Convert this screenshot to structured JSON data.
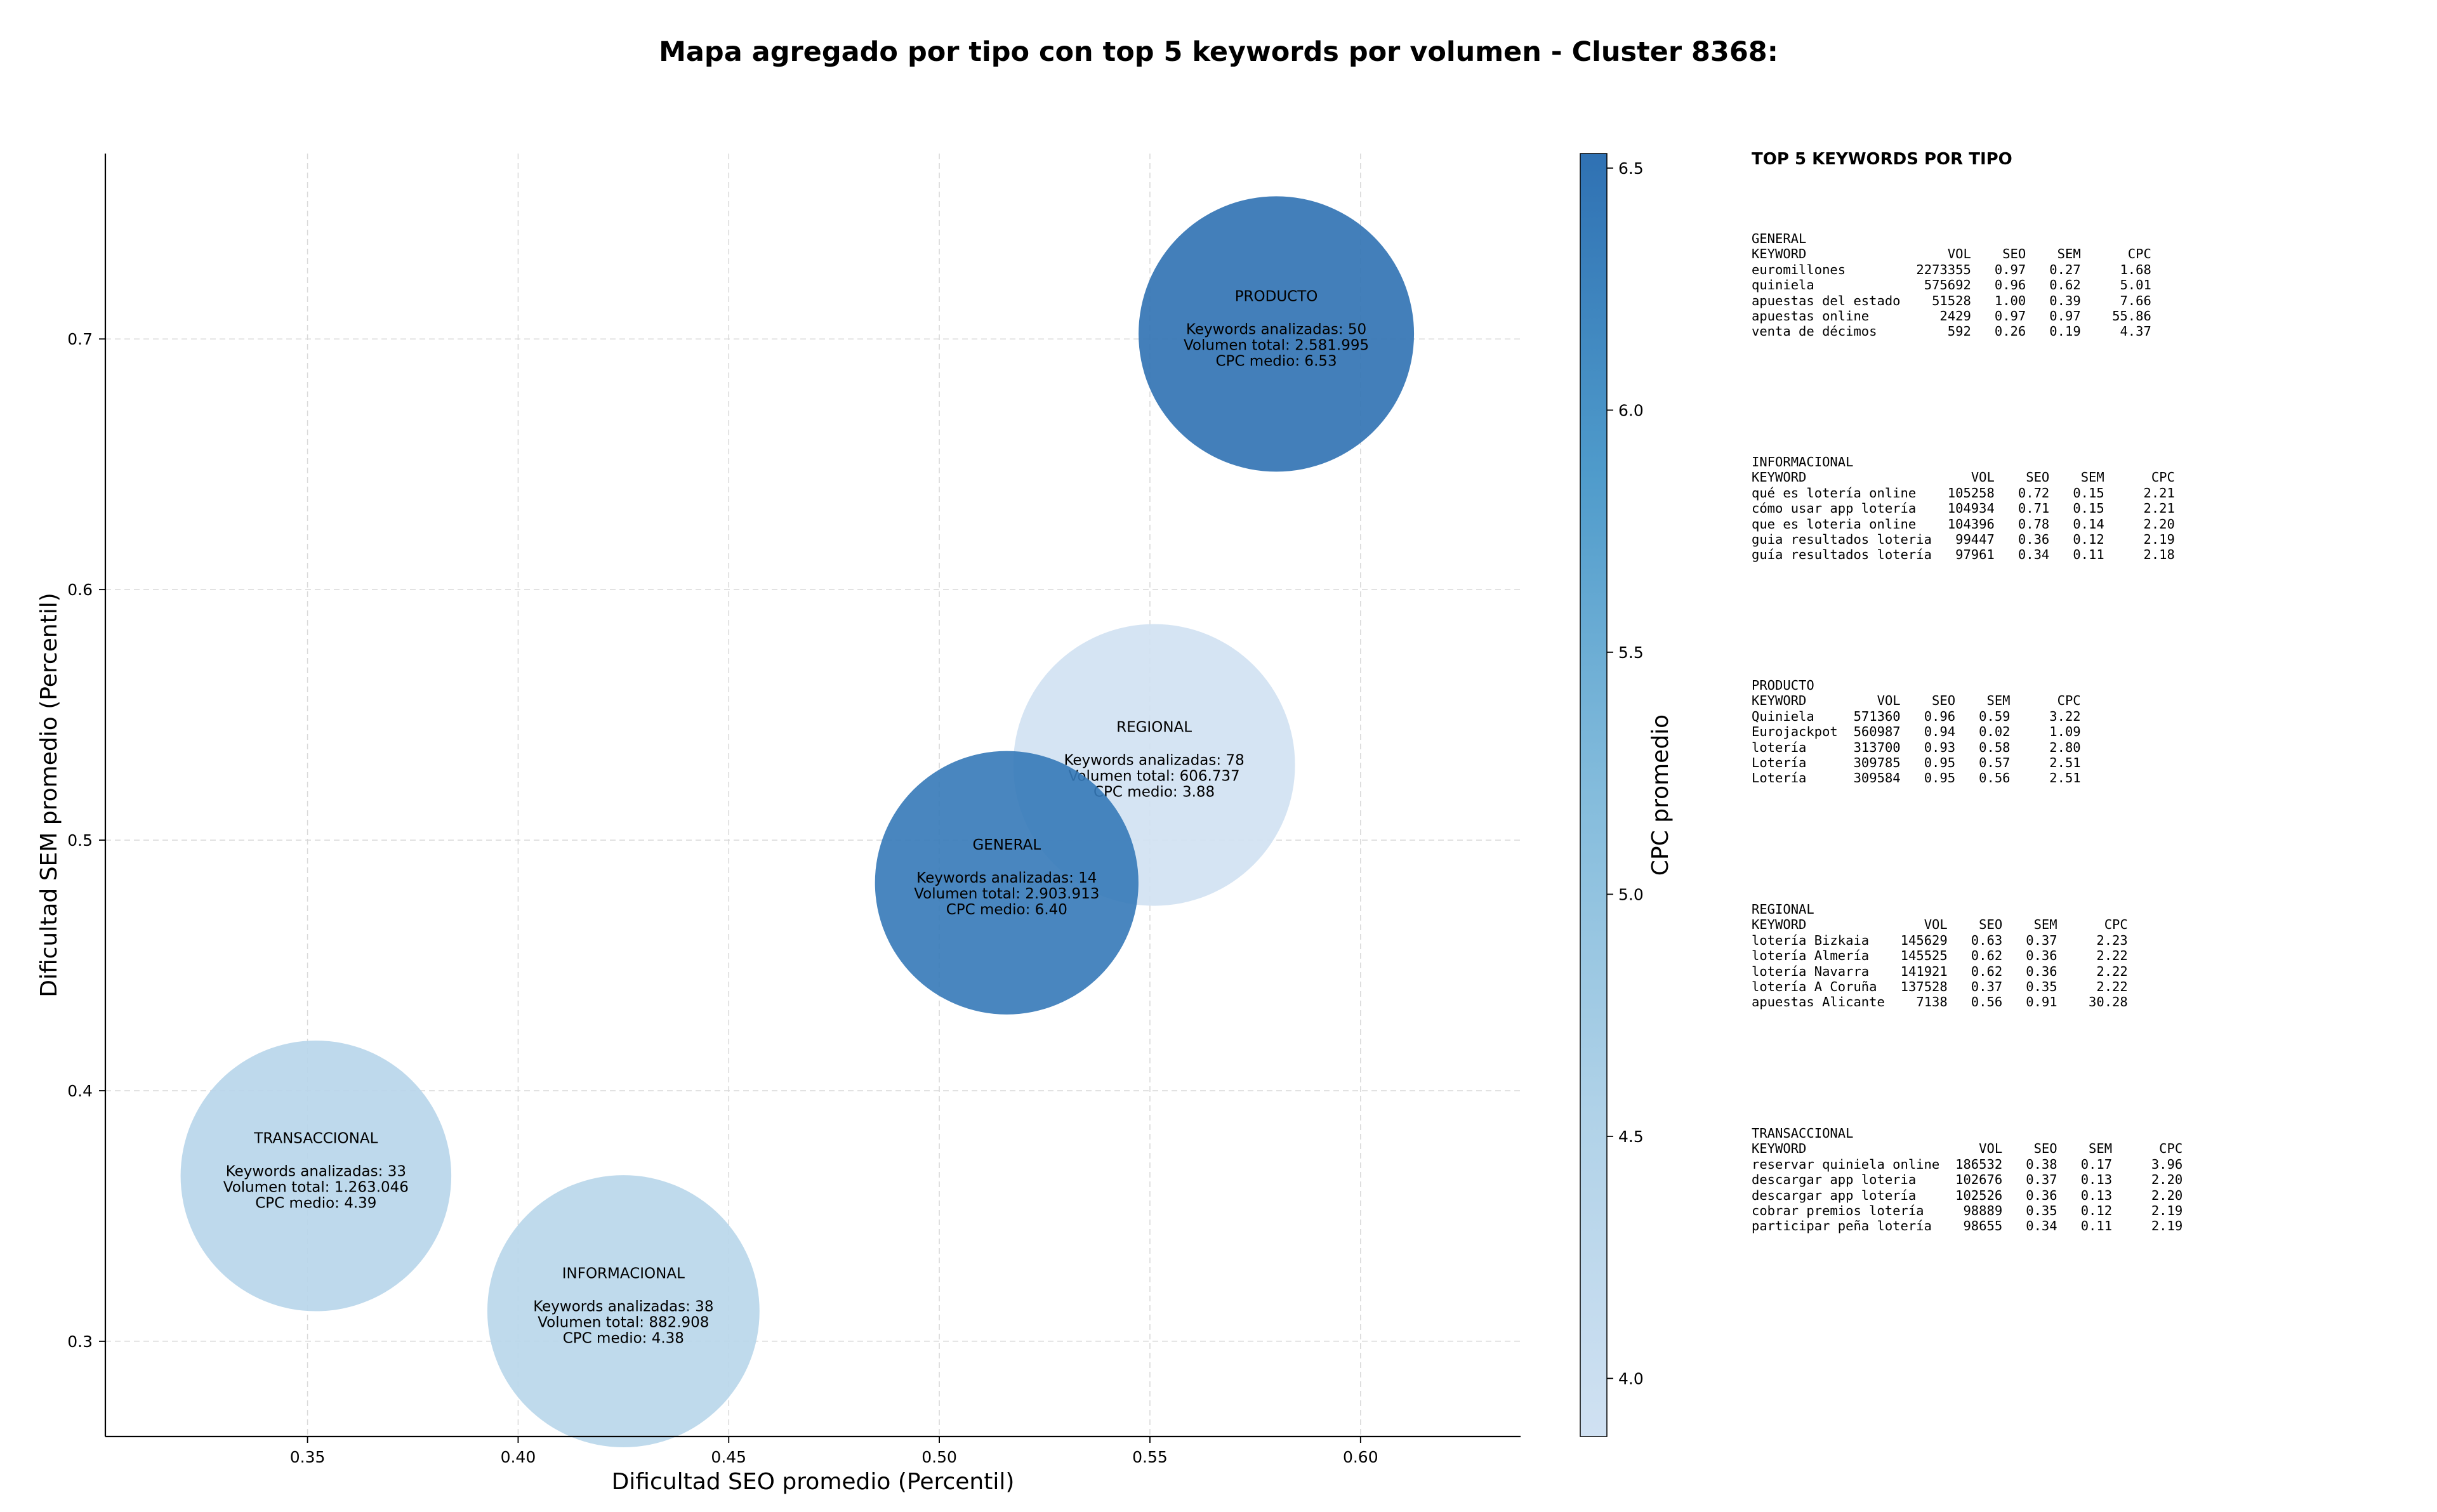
{
  "chart_data": {
    "type": "scatter",
    "title": "Mapa agregado por tipo con top 5 keywords por volumen - Cluster 8368:",
    "xlabel": "Dificultad SEO promedio (Percentil)",
    "ylabel": "Dificultad SEM promedio (Percentil)",
    "xlim": [
      0.302,
      0.638
    ],
    "ylim": [
      0.262,
      0.774
    ],
    "xticks": [
      "0.35",
      "0.40",
      "0.45",
      "0.50",
      "0.55",
      "0.60"
    ],
    "yticks": [
      "0.3",
      "0.4",
      "0.5",
      "0.6",
      "0.7"
    ],
    "grid": true,
    "colorbar": {
      "label": "CPC promedio",
      "range": [
        3.88,
        6.53
      ],
      "ticks": [
        "4.0",
        "4.5",
        "5.0",
        "5.5",
        "6.0",
        "6.5"
      ],
      "colormap": "Blues",
      "light_color": "#d0e1f2",
      "dark_color": "#2f71b3"
    },
    "label_prefixes": {
      "keywords": "Keywords analizadas: ",
      "volume": "Volumen total: ",
      "cpc": "CPC medio: "
    },
    "points": [
      {
        "name": "PRODUCTO",
        "x": 0.58,
        "y": 0.702,
        "keywords": 50,
        "volume_total": 2581995,
        "volume_label": "2.581.995",
        "cpc": 6.53,
        "cpc_label": "6.53"
      },
      {
        "name": "REGIONAL",
        "x": 0.551,
        "y": 0.53,
        "keywords": 78,
        "volume_total": 606737,
        "volume_label": "606.737",
        "cpc": 3.88,
        "cpc_label": "3.88"
      },
      {
        "name": "GENERAL",
        "x": 0.516,
        "y": 0.483,
        "keywords": 14,
        "volume_total": 2903913,
        "volume_label": "2.903.913",
        "cpc": 6.4,
        "cpc_label": "6.40"
      },
      {
        "name": "TRANSACCIONAL",
        "x": 0.352,
        "y": 0.366,
        "keywords": 33,
        "volume_total": 1263046,
        "volume_label": "1.263.046",
        "cpc": 4.39,
        "cpc_label": "4.39"
      },
      {
        "name": "INFORMACIONAL",
        "x": 0.425,
        "y": 0.312,
        "keywords": 38,
        "volume_total": 882908,
        "volume_label": "882.908",
        "cpc": 4.38,
        "cpc_label": "4.38"
      }
    ]
  },
  "panel": {
    "title": "TOP 5 KEYWORDS POR TIPO",
    "columns": [
      "KEYWORD",
      "VOL",
      "SEO",
      "SEM",
      "CPC"
    ],
    "groups": [
      {
        "name": "GENERAL",
        "kw_width": 20,
        "rows": [
          [
            "euromillones",
            "2273355",
            "0.97",
            "0.27",
            "1.68"
          ],
          [
            "quiniela",
            "575692",
            "0.96",
            "0.62",
            "5.01"
          ],
          [
            "apuestas del estado",
            "51528",
            "1.00",
            "0.39",
            "7.66"
          ],
          [
            "apuestas online",
            "2429",
            "0.97",
            "0.97",
            "55.86"
          ],
          [
            "venta de décimos",
            "592",
            "0.26",
            "0.19",
            "4.37"
          ]
        ]
      },
      {
        "name": "INFORMACIONAL",
        "kw_width": 23,
        "rows": [
          [
            "qué es lotería online",
            "105258",
            "0.72",
            "0.15",
            "2.21"
          ],
          [
            "cómo usar app lotería",
            "104934",
            "0.71",
            "0.15",
            "2.21"
          ],
          [
            "que es loteria online",
            "104396",
            "0.78",
            "0.14",
            "2.20"
          ],
          [
            "guia resultados loteria",
            "99447",
            "0.36",
            "0.12",
            "2.19"
          ],
          [
            "guía resultados lotería",
            "97961",
            "0.34",
            "0.11",
            "2.18"
          ]
        ]
      },
      {
        "name": "PRODUCTO",
        "kw_width": 11,
        "rows": [
          [
            "Quiniela",
            "571360",
            "0.96",
            "0.59",
            "3.22"
          ],
          [
            "Eurojackpot",
            "560987",
            "0.94",
            "0.02",
            "1.09"
          ],
          [
            "lotería",
            "313700",
            "0.93",
            "0.58",
            "2.80"
          ],
          [
            "Lotería",
            "309785",
            "0.95",
            "0.57",
            "2.51"
          ],
          [
            "Lotería",
            "309584",
            "0.95",
            "0.56",
            "2.51"
          ]
        ]
      },
      {
        "name": "REGIONAL",
        "kw_width": 17,
        "rows": [
          [
            "lotería Bizkaia",
            "145629",
            "0.63",
            "0.37",
            "2.23"
          ],
          [
            "lotería Almería",
            "145525",
            "0.62",
            "0.36",
            "2.22"
          ],
          [
            "lotería Navarra",
            "141921",
            "0.62",
            "0.36",
            "2.22"
          ],
          [
            "lotería A Coruña",
            "137528",
            "0.37",
            "0.35",
            "2.22"
          ],
          [
            "apuestas Alicante",
            "7138",
            "0.56",
            "0.91",
            "30.28"
          ]
        ]
      },
      {
        "name": "TRANSACCIONAL",
        "kw_width": 24,
        "rows": [
          [
            "reservar quiniela online",
            "186532",
            "0.38",
            "0.17",
            "3.96"
          ],
          [
            "descargar app loteria",
            "102676",
            "0.37",
            "0.13",
            "2.20"
          ],
          [
            "descargar app lotería",
            "102526",
            "0.36",
            "0.13",
            "2.20"
          ],
          [
            "cobrar premios lotería",
            "98889",
            "0.35",
            "0.12",
            "2.19"
          ],
          [
            "participar peña lotería",
            "98655",
            "0.34",
            "0.11",
            "2.19"
          ]
        ]
      }
    ]
  }
}
